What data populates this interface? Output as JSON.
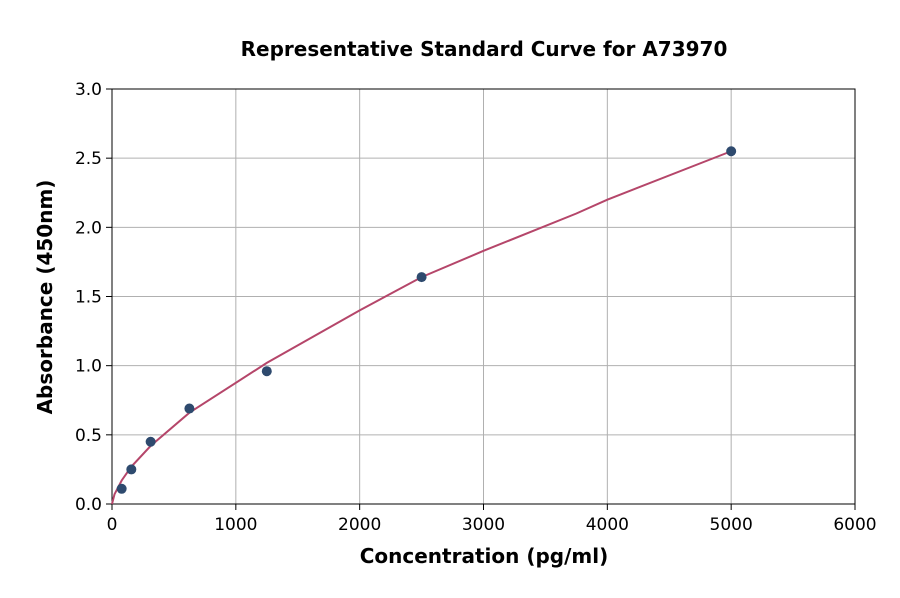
{
  "chart_data": {
    "type": "scatter",
    "title": "Representative Standard Curve for A73970",
    "x_label": "Concentration (pg/ml)",
    "y_label": "Absorbance (450nm)",
    "xlim": [
      0,
      6000
    ],
    "xticks": [
      0,
      1000,
      2000,
      3000,
      4000,
      5000,
      6000
    ],
    "ylim": [
      0,
      3
    ],
    "yticks": [
      {
        "value": 0,
        "label": "0.0"
      },
      0.5,
      {
        "value": 1,
        "label": "1.0"
      },
      1.5,
      {
        "value": 2,
        "label": "2.0"
      },
      2.5,
      {
        "value": 3,
        "label": "3.0"
      }
    ],
    "grid": true,
    "series": [
      {
        "type": "scatter",
        "color": "#2e4a6e",
        "x": [
          78,
          156,
          312,
          625,
          1250,
          2500,
          5000
        ],
        "values": [
          0.11,
          0.25,
          0.45,
          0.69,
          0.96,
          1.64,
          2.55
        ]
      },
      {
        "type": "line",
        "color": "#b5466a",
        "x": [
          0,
          20,
          78,
          156,
          312,
          625,
          1250,
          2000,
          2500,
          3000,
          3750,
          4000,
          5000
        ],
        "values": [
          0,
          0.07,
          0.17,
          0.27,
          0.42,
          0.66,
          1.02,
          1.4,
          1.64,
          1.83,
          2.1,
          2.2,
          2.55
        ]
      }
    ]
  }
}
